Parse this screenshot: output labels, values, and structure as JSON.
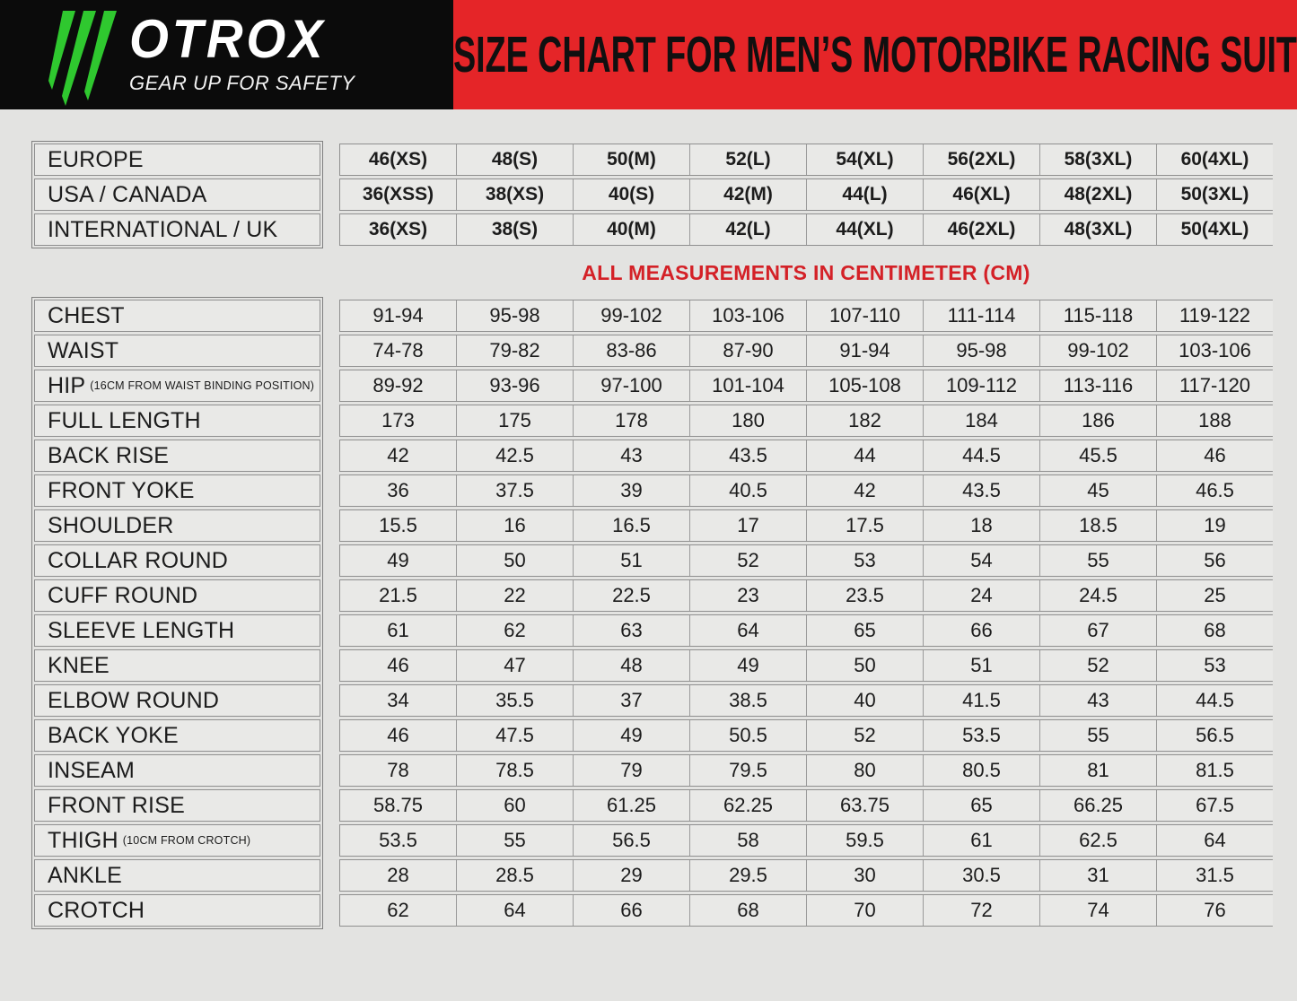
{
  "brand": {
    "name": "OTROX",
    "tagline": "GEAR UP FOR SAFETY"
  },
  "banner": {
    "title": "SIZE CHART FOR MEN’S MOTORBIKE RACING SUIT"
  },
  "note": "ALL MEASUREMENTS IN CENTIMETER (CM)",
  "colors": {
    "header_black": "#0b0b0b",
    "banner_red": "#e52528",
    "logo_green": "#2fc82f",
    "note_red": "#d42127"
  },
  "size_conversion": {
    "rows": [
      {
        "label": "EUROPE",
        "values": [
          "46(XS)",
          "48(S)",
          "50(M)",
          "52(L)",
          "54(XL)",
          "56(2XL)",
          "58(3XL)",
          "60(4XL)"
        ]
      },
      {
        "label": "USA / CANADA",
        "values": [
          "36(XSS)",
          "38(XS)",
          "40(S)",
          "42(M)",
          "44(L)",
          "46(XL)",
          "48(2XL)",
          "50(3XL)"
        ]
      },
      {
        "label": "INTERNATIONAL / UK",
        "values": [
          "36(XS)",
          "38(S)",
          "40(M)",
          "42(L)",
          "44(XL)",
          "46(2XL)",
          "48(3XL)",
          "50(4XL)"
        ]
      }
    ]
  },
  "measurements": {
    "rows": [
      {
        "label": "CHEST",
        "sublabel": "",
        "values": [
          "91-94",
          "95-98",
          "99-102",
          "103-106",
          "107-110",
          "111-114",
          "115-118",
          "119-122"
        ]
      },
      {
        "label": "WAIST",
        "sublabel": "",
        "values": [
          "74-78",
          "79-82",
          "83-86",
          "87-90",
          "91-94",
          "95-98",
          "99-102",
          "103-106"
        ]
      },
      {
        "label": "HIP",
        "sublabel": "(16CM FROM WAIST BINDING POSITION)",
        "values": [
          "89-92",
          "93-96",
          "97-100",
          "101-104",
          "105-108",
          "109-112",
          "113-116",
          "117-120"
        ]
      },
      {
        "label": "FULL LENGTH",
        "sublabel": "",
        "values": [
          "173",
          "175",
          "178",
          "180",
          "182",
          "184",
          "186",
          "188"
        ]
      },
      {
        "label": "BACK RISE",
        "sublabel": "",
        "values": [
          "42",
          "42.5",
          "43",
          "43.5",
          "44",
          "44.5",
          "45.5",
          "46"
        ]
      },
      {
        "label": "FRONT YOKE",
        "sublabel": "",
        "values": [
          "36",
          "37.5",
          "39",
          "40.5",
          "42",
          "43.5",
          "45",
          "46.5"
        ]
      },
      {
        "label": "SHOULDER",
        "sublabel": "",
        "values": [
          "15.5",
          "16",
          "16.5",
          "17",
          "17.5",
          "18",
          "18.5",
          "19"
        ]
      },
      {
        "label": "COLLAR ROUND",
        "sublabel": "",
        "values": [
          "49",
          "50",
          "51",
          "52",
          "53",
          "54",
          "55",
          "56"
        ]
      },
      {
        "label": "CUFF ROUND",
        "sublabel": "",
        "values": [
          "21.5",
          "22",
          "22.5",
          "23",
          "23.5",
          "24",
          "24.5",
          "25"
        ]
      },
      {
        "label": "SLEEVE LENGTH",
        "sublabel": "",
        "values": [
          "61",
          "62",
          "63",
          "64",
          "65",
          "66",
          "67",
          "68"
        ]
      },
      {
        "label": "KNEE",
        "sublabel": "",
        "values": [
          "46",
          "47",
          "48",
          "49",
          "50",
          "51",
          "52",
          "53"
        ]
      },
      {
        "label": "ELBOW ROUND",
        "sublabel": "",
        "values": [
          "34",
          "35.5",
          "37",
          "38.5",
          "40",
          "41.5",
          "43",
          "44.5"
        ]
      },
      {
        "label": "BACK YOKE",
        "sublabel": "",
        "values": [
          "46",
          "47.5",
          "49",
          "50.5",
          "52",
          "53.5",
          "55",
          "56.5"
        ]
      },
      {
        "label": "INSEAM",
        "sublabel": "",
        "values": [
          "78",
          "78.5",
          "79",
          "79.5",
          "80",
          "80.5",
          "81",
          "81.5"
        ]
      },
      {
        "label": "FRONT RISE",
        "sublabel": "",
        "values": [
          "58.75",
          "60",
          "61.25",
          "62.25",
          "63.75",
          "65",
          "66.25",
          "67.5"
        ]
      },
      {
        "label": "THIGH",
        "sublabel": "(10CM FROM CROTCH)",
        "values": [
          "53.5",
          "55",
          "56.5",
          "58",
          "59.5",
          "61",
          "62.5",
          "64"
        ]
      },
      {
        "label": "ANKLE",
        "sublabel": "",
        "values": [
          "28",
          "28.5",
          "29",
          "29.5",
          "30",
          "30.5",
          "31",
          "31.5"
        ]
      },
      {
        "label": "CROTCH",
        "sublabel": "",
        "values": [
          "62",
          "64",
          "66",
          "68",
          "70",
          "72",
          "74",
          "76"
        ]
      }
    ]
  }
}
